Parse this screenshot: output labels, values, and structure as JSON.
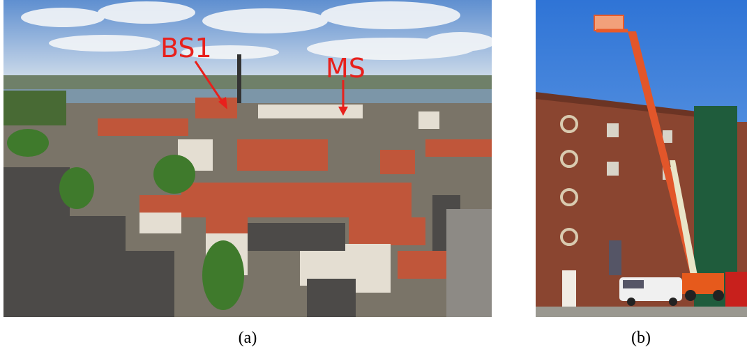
{
  "panels": [
    {
      "caption": "(a)",
      "labels": [
        "BS1",
        "MS"
      ]
    },
    {
      "caption": "(b)"
    }
  ]
}
